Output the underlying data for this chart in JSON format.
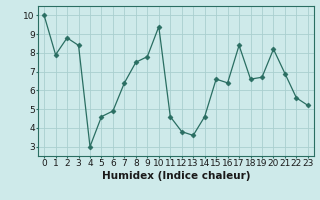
{
  "x": [
    0,
    1,
    2,
    3,
    4,
    5,
    6,
    7,
    8,
    9,
    10,
    11,
    12,
    13,
    14,
    15,
    16,
    17,
    18,
    19,
    20,
    21,
    22,
    23
  ],
  "y": [
    10,
    7.9,
    8.8,
    8.4,
    3.0,
    4.6,
    4.9,
    6.4,
    7.5,
    7.8,
    9.4,
    4.6,
    3.8,
    3.6,
    4.6,
    6.6,
    6.4,
    8.4,
    6.6,
    6.7,
    8.2,
    6.9,
    5.6,
    5.2
  ],
  "line_color": "#2a6e62",
  "marker": "D",
  "marker_size": 2.5,
  "background_color": "#ceeaea",
  "grid_color": "#aacfcf",
  "xlabel": "Humidex (Indice chaleur)",
  "xlim": [
    -0.5,
    23.5
  ],
  "ylim": [
    2.5,
    10.5
  ],
  "yticks": [
    3,
    4,
    5,
    6,
    7,
    8,
    9,
    10
  ],
  "xticks": [
    0,
    1,
    2,
    3,
    4,
    5,
    6,
    7,
    8,
    9,
    10,
    11,
    12,
    13,
    14,
    15,
    16,
    17,
    18,
    19,
    20,
    21,
    22,
    23
  ],
  "tick_fontsize": 6.5,
  "xlabel_fontsize": 7.5
}
